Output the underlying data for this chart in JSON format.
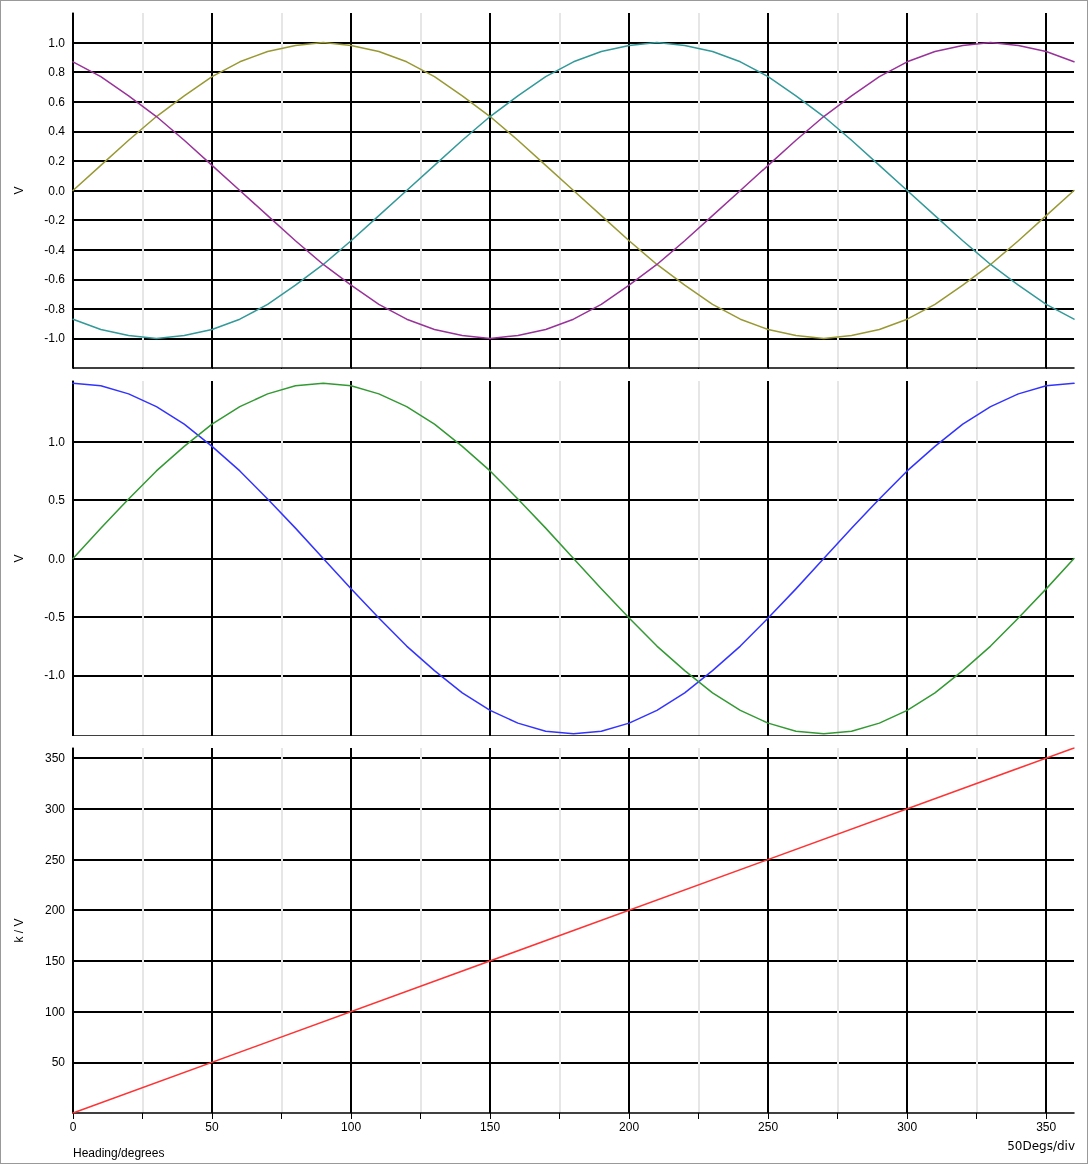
{
  "chart_data": [
    {
      "type": "line",
      "ylabel": "V",
      "xlim": [
        0,
        360
      ],
      "ylim": [
        -1.2,
        1.2
      ],
      "tick_labels": "y",
      "grid": true,
      "marker": "none",
      "line_style": "solid",
      "xticks": [
        0,
        {
          "value": 25,
          "label": null
        },
        50,
        {
          "value": 75,
          "label": null
        },
        100,
        {
          "value": 125,
          "label": null
        },
        150,
        {
          "value": 175,
          "label": null
        },
        200,
        {
          "value": 225,
          "label": null
        },
        250,
        {
          "value": 275,
          "label": null
        },
        300,
        {
          "value": 325,
          "label": null
        },
        350
      ],
      "yticks": [
        {
          "value": -1,
          "label": "-1.0"
        },
        -0.8,
        -0.6,
        -0.4,
        -0.2,
        {
          "value": 0,
          "label": "0.0"
        },
        0.2,
        0.4,
        0.6,
        0.8,
        {
          "value": 1,
          "label": "1.0"
        }
      ],
      "x": [
        0,
        10,
        20,
        30,
        40,
        50,
        60,
        70,
        80,
        90,
        100,
        110,
        120,
        130,
        140,
        150,
        160,
        170,
        180,
        190,
        200,
        210,
        220,
        230,
        240,
        250,
        260,
        270,
        280,
        290,
        300,
        310,
        320,
        330,
        340,
        350,
        360
      ],
      "series": [
        {
          "color": "#999933",
          "values": [
            0,
            0.17,
            0.34,
            0.5,
            0.64,
            0.77,
            0.87,
            0.94,
            0.98,
            1,
            0.98,
            0.94,
            0.87,
            0.77,
            0.64,
            0.5,
            0.34,
            0.17,
            0,
            -0.17,
            -0.34,
            -0.5,
            -0.64,
            -0.77,
            -0.87,
            -0.94,
            -0.98,
            -1,
            -0.98,
            -0.94,
            -0.87,
            -0.77,
            -0.64,
            -0.5,
            -0.34,
            -0.17,
            0
          ]
        },
        {
          "color": "#339999",
          "values": [
            -0.87,
            -0.94,
            -0.98,
            -1,
            -0.98,
            -0.94,
            -0.87,
            -0.77,
            -0.64,
            -0.5,
            -0.34,
            -0.17,
            0,
            0.17,
            0.34,
            0.5,
            0.64,
            0.77,
            0.87,
            0.94,
            0.98,
            1,
            0.98,
            0.94,
            0.87,
            0.77,
            0.64,
            0.5,
            0.34,
            0.17,
            0,
            -0.17,
            -0.34,
            -0.5,
            -0.64,
            -0.77,
            -0.87
          ]
        },
        {
          "color": "#993399",
          "values": [
            0.87,
            0.77,
            0.64,
            0.5,
            0.34,
            0.17,
            0,
            -0.17,
            -0.34,
            -0.5,
            -0.64,
            -0.77,
            -0.87,
            -0.94,
            -0.98,
            -1,
            -0.98,
            -0.94,
            -0.87,
            -0.77,
            -0.64,
            -0.5,
            -0.34,
            -0.17,
            0,
            0.17,
            0.34,
            0.5,
            0.64,
            0.77,
            0.87,
            0.94,
            0.98,
            1,
            0.98,
            0.94,
            0.87
          ]
        }
      ]
    },
    {
      "type": "line",
      "ylabel": "V",
      "xlim": [
        0,
        360
      ],
      "ylim": [
        -1.52,
        1.52
      ],
      "tick_labels": "y",
      "grid": true,
      "marker": "none",
      "line_style": "solid",
      "xticks": [
        0,
        {
          "value": 25,
          "label": null
        },
        50,
        {
          "value": 75,
          "label": null
        },
        100,
        {
          "value": 125,
          "label": null
        },
        150,
        {
          "value": 175,
          "label": null
        },
        200,
        {
          "value": 225,
          "label": null
        },
        250,
        {
          "value": 275,
          "label": null
        },
        300,
        {
          "value": 325,
          "label": null
        },
        350
      ],
      "yticks": [
        {
          "value": -1,
          "label": "-1.0"
        },
        -0.5,
        {
          "value": 0,
          "label": "0.0"
        },
        0.5,
        {
          "value": 1,
          "label": "1.0"
        }
      ],
      "x": [
        0,
        10,
        20,
        30,
        40,
        50,
        60,
        70,
        80,
        90,
        100,
        110,
        120,
        130,
        140,
        150,
        160,
        170,
        180,
        190,
        200,
        210,
        220,
        230,
        240,
        250,
        260,
        270,
        280,
        290,
        300,
        310,
        320,
        330,
        340,
        350,
        360
      ],
      "series": [
        {
          "color": "#3333ff",
          "values": [
            1.5,
            1.48,
            1.41,
            1.3,
            1.15,
            0.96,
            0.75,
            0.51,
            0.26,
            0,
            -0.26,
            -0.51,
            -0.75,
            -0.96,
            -1.15,
            -1.3,
            -1.41,
            -1.48,
            -1.5,
            -1.48,
            -1.41,
            -1.3,
            -1.15,
            -0.96,
            -0.75,
            -0.51,
            -0.26,
            0,
            0.26,
            0.51,
            0.75,
            0.96,
            1.15,
            1.3,
            1.41,
            1.48,
            1.5
          ]
        },
        {
          "color": "#339933",
          "values": [
            0,
            0.26,
            0.51,
            0.75,
            0.96,
            1.15,
            1.3,
            1.41,
            1.48,
            1.5,
            1.48,
            1.41,
            1.3,
            1.15,
            0.96,
            0.75,
            0.51,
            0.26,
            0,
            -0.26,
            -0.51,
            -0.75,
            -0.96,
            -1.15,
            -1.3,
            -1.41,
            -1.48,
            -1.5,
            -1.48,
            -1.41,
            -1.3,
            -1.15,
            -0.96,
            -0.75,
            -0.51,
            -0.26,
            0
          ]
        }
      ]
    },
    {
      "type": "line",
      "ylabel": "k / V",
      "xlabel": "Heading/degrees",
      "annotations": [
        "50Degs/div"
      ],
      "xlim": [
        0,
        360
      ],
      "ylim": [
        0,
        360
      ],
      "grid": true,
      "marker": "none",
      "line_style": "solid",
      "xticks": [
        0,
        {
          "value": 25,
          "label": null
        },
        50,
        {
          "value": 75,
          "label": null
        },
        100,
        {
          "value": 125,
          "label": null
        },
        150,
        {
          "value": 175,
          "label": null
        },
        200,
        {
          "value": 225,
          "label": null
        },
        250,
        {
          "value": 275,
          "label": null
        },
        300,
        {
          "value": 325,
          "label": null
        },
        350
      ],
      "yticks": [
        50,
        100,
        150,
        200,
        250,
        300,
        350
      ],
      "x": [
        0,
        360
      ],
      "series": [
        {
          "color": "#ff3333",
          "values": [
            0,
            360
          ]
        }
      ]
    }
  ]
}
